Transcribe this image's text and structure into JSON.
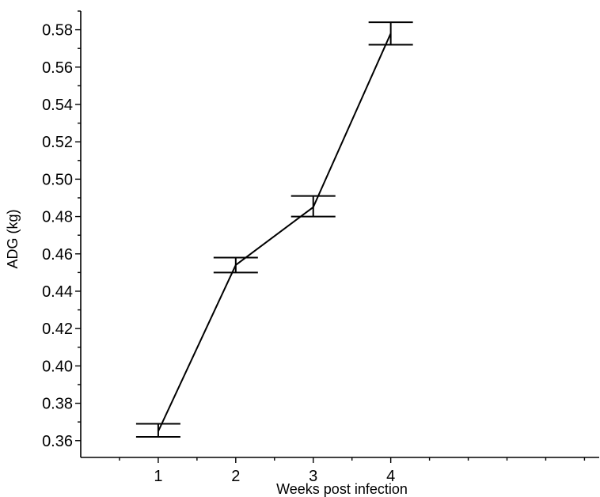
{
  "chart_data": {
    "type": "line",
    "title": "",
    "xlabel": "Weeks post infection",
    "ylabel": "ADG (kg)",
    "categories": [
      "1",
      "2",
      "3",
      "4"
    ],
    "x": [
      1,
      2,
      3,
      4
    ],
    "series": [
      {
        "values": [
          0.365,
          0.454,
          0.485,
          0.578
        ],
        "error_low": [
          0.362,
          0.45,
          0.48,
          0.572
        ],
        "error_high": [
          0.369,
          0.458,
          0.491,
          0.584
        ]
      }
    ],
    "xlim": [
      0,
      6.7
    ],
    "ylim": [
      0.351,
      0.59
    ],
    "yticks": [
      0.36,
      0.38,
      0.4,
      0.42,
      0.44,
      0.46,
      0.48,
      0.5,
      0.52,
      0.54,
      0.56,
      0.58
    ],
    "ytick_labels": [
      "0.36",
      "0.38",
      "0.40",
      "0.42",
      "0.44",
      "0.46",
      "0.48",
      "0.50",
      "0.52",
      "0.54",
      "0.56",
      "0.58"
    ],
    "grid": false,
    "legend": "none",
    "color": "#000000"
  }
}
